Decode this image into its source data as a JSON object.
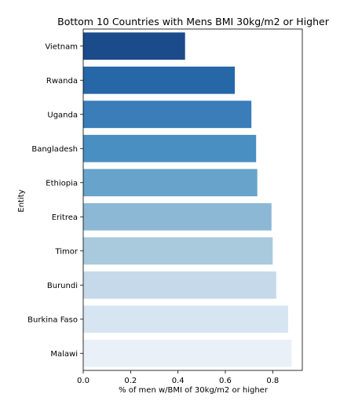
{
  "chart_data": {
    "type": "bar",
    "orientation": "horizontal",
    "title": "Bottom 10 Countries with Mens BMI 30kg/m2 or Higher",
    "xlabel": "% of men w/BMI of 30kg/m2 or higher",
    "ylabel": "Entity",
    "xlim": [
      0,
      0.925
    ],
    "xticks": [
      0.0,
      0.2,
      0.4,
      0.6,
      0.8
    ],
    "xtick_labels": [
      "0.0",
      "0.2",
      "0.4",
      "0.6",
      "0.8"
    ],
    "categories": [
      "Vietnam",
      "Rwanda",
      "Uganda",
      "Bangladesh",
      "Ethiopia",
      "Eritrea",
      "Timor",
      "Burundi",
      "Burkina Faso",
      "Malawi"
    ],
    "values": [
      0.43,
      0.64,
      0.71,
      0.73,
      0.735,
      0.795,
      0.8,
      0.815,
      0.865,
      0.88
    ],
    "colors": [
      "#1b4b8a",
      "#2667a8",
      "#3a7db8",
      "#4a8fc2",
      "#67a3cb",
      "#8db8d5",
      "#a9cadd",
      "#c6d9ea",
      "#d7e5f2",
      "#e9f0f8"
    ],
    "grid": false,
    "legend": "none"
  }
}
